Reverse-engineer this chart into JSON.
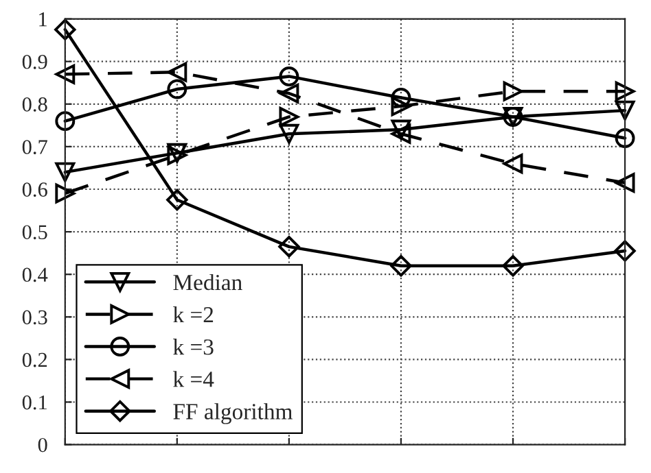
{
  "chart_data": {
    "type": "line",
    "categories": [
      null,
      null,
      null,
      null,
      null,
      null
    ],
    "series": [
      {
        "name": "Median",
        "color": "#000000",
        "marker": "triangle_down",
        "line_style": "solid",
        "values": [
          0.64,
          0.685,
          0.73,
          0.74,
          0.77,
          0.785
        ]
      },
      {
        "name": "k =2",
        "color": "#000000",
        "marker": "triangle_right",
        "line_style": "dashed",
        "values": [
          0.59,
          0.68,
          0.77,
          0.795,
          0.83,
          0.83
        ]
      },
      {
        "name": "k =3",
        "color": "#000000",
        "marker": "circle",
        "line_style": "solid",
        "values": [
          0.76,
          0.835,
          0.865,
          0.815,
          0.77,
          0.72
        ]
      },
      {
        "name": "k =4",
        "color": "#000000",
        "marker": "triangle_left",
        "line_style": "dashed",
        "values": [
          0.87,
          0.875,
          0.825,
          0.73,
          0.66,
          0.615
        ]
      },
      {
        "name": "FF algorithm",
        "color": "#000000",
        "marker": "diamond",
        "line_style": "solid",
        "values": [
          0.975,
          0.575,
          0.465,
          0.42,
          0.42,
          0.455
        ]
      }
    ],
    "ylim": [
      0,
      1
    ],
    "yticks": [
      0,
      0.1,
      0.2,
      0.3,
      0.4,
      0.5,
      0.6,
      0.7,
      0.8,
      0.9,
      1
    ],
    "grid": true,
    "legend": "bottom left"
  }
}
